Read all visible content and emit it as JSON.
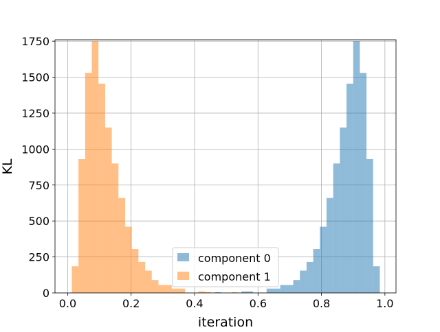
{
  "chart_data": {
    "type": "bar",
    "title": "",
    "xlabel": "iteration",
    "ylabel": "KL",
    "xlim": [
      -0.04,
      1.035
    ],
    "ylim": [
      0,
      1760
    ],
    "xticks": [
      0.0,
      0.2,
      0.4,
      0.6,
      0.8,
      1.0
    ],
    "xtick_labels": [
      "0.0",
      "0.2",
      "0.4",
      "0.6",
      "0.8",
      "1.0"
    ],
    "yticks": [
      0,
      250,
      500,
      750,
      1000,
      1250,
      1500,
      1750
    ],
    "ytick_labels": [
      "0",
      "250",
      "500",
      "750",
      "1000",
      "1250",
      "1500",
      "1750"
    ],
    "grid": true,
    "legend_position": "lower-center",
    "series": [
      {
        "name": "component 0",
        "color": "#1f77b4",
        "opacity": 0.5,
        "bins": [
          {
            "x0": 0.465,
            "x1": 0.483,
            "value": 5
          },
          {
            "x0": 0.548,
            "x1": 0.566,
            "value": 10
          },
          {
            "x0": 0.566,
            "x1": 0.584,
            "value": 10
          },
          {
            "x0": 0.627,
            "x1": 0.65,
            "value": 30
          },
          {
            "x0": 0.65,
            "x1": 0.67,
            "value": 30
          },
          {
            "x0": 0.67,
            "x1": 0.69,
            "value": 55
          },
          {
            "x0": 0.69,
            "x1": 0.711,
            "value": 55
          },
          {
            "x0": 0.711,
            "x1": 0.732,
            "value": 90
          },
          {
            "x0": 0.732,
            "x1": 0.753,
            "value": 155
          },
          {
            "x0": 0.753,
            "x1": 0.774,
            "value": 215
          },
          {
            "x0": 0.774,
            "x1": 0.795,
            "value": 305
          },
          {
            "x0": 0.795,
            "x1": 0.816,
            "value": 460
          },
          {
            "x0": 0.816,
            "x1": 0.837,
            "value": 660
          },
          {
            "x0": 0.837,
            "x1": 0.858,
            "value": 900
          },
          {
            "x0": 0.858,
            "x1": 0.879,
            "value": 1150
          },
          {
            "x0": 0.879,
            "x1": 0.9,
            "value": 1455
          },
          {
            "x0": 0.9,
            "x1": 0.921,
            "value": 1750
          },
          {
            "x0": 0.921,
            "x1": 0.942,
            "value": 1530
          },
          {
            "x0": 0.942,
            "x1": 0.963,
            "value": 930
          },
          {
            "x0": 0.963,
            "x1": 0.984,
            "value": 185
          }
        ]
      },
      {
        "name": "component 1",
        "color": "#ff7f0e",
        "opacity": 0.5,
        "bins": [
          {
            "x0": 0.013,
            "x1": 0.034,
            "value": 185
          },
          {
            "x0": 0.034,
            "x1": 0.055,
            "value": 930
          },
          {
            "x0": 0.055,
            "x1": 0.076,
            "value": 1530
          },
          {
            "x0": 0.076,
            "x1": 0.097,
            "value": 1750
          },
          {
            "x0": 0.097,
            "x1": 0.118,
            "value": 1455
          },
          {
            "x0": 0.118,
            "x1": 0.139,
            "value": 1150
          },
          {
            "x0": 0.139,
            "x1": 0.16,
            "value": 900
          },
          {
            "x0": 0.16,
            "x1": 0.181,
            "value": 660
          },
          {
            "x0": 0.181,
            "x1": 0.202,
            "value": 460
          },
          {
            "x0": 0.202,
            "x1": 0.223,
            "value": 305
          },
          {
            "x0": 0.223,
            "x1": 0.244,
            "value": 215
          },
          {
            "x0": 0.244,
            "x1": 0.265,
            "value": 155
          },
          {
            "x0": 0.265,
            "x1": 0.286,
            "value": 90
          },
          {
            "x0": 0.286,
            "x1": 0.307,
            "value": 55
          },
          {
            "x0": 0.307,
            "x1": 0.328,
            "value": 55
          },
          {
            "x0": 0.328,
            "x1": 0.349,
            "value": 30
          },
          {
            "x0": 0.349,
            "x1": 0.37,
            "value": 30
          },
          {
            "x0": 0.412,
            "x1": 0.433,
            "value": 10
          },
          {
            "x0": 0.433,
            "x1": 0.452,
            "value": 5
          },
          {
            "x0": 0.517,
            "x1": 0.535,
            "value": 5
          }
        ]
      }
    ]
  }
}
